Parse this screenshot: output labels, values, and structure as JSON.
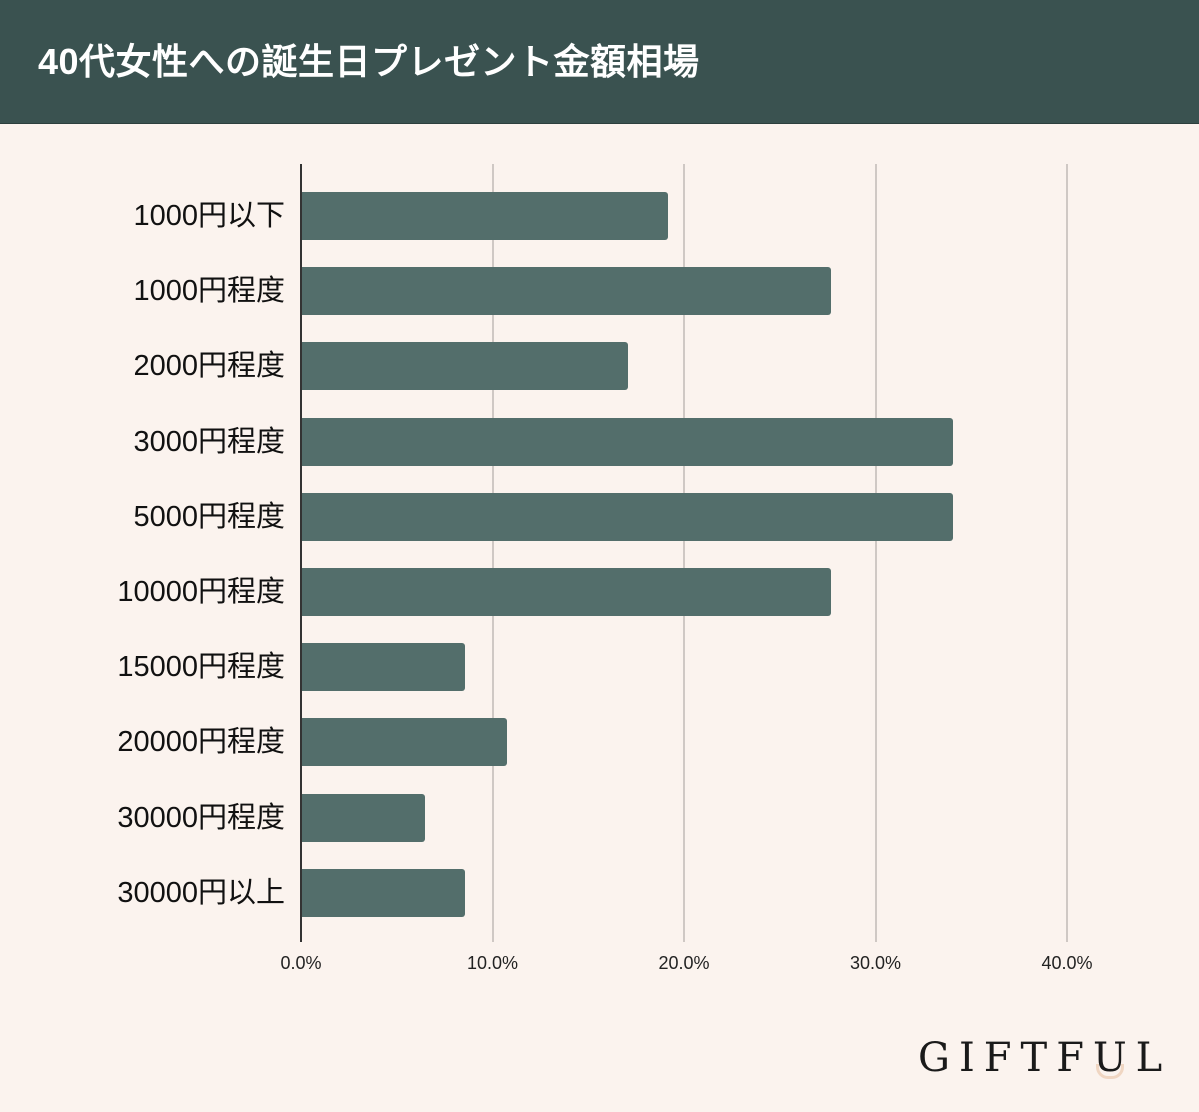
{
  "header": {
    "title": "40代女性への誕生日プレゼント金額相場"
  },
  "colors": {
    "header_bg": "#3a5250",
    "bar": "#536e6b",
    "background": "#fbf3ee",
    "logo_accent": "#f0d6c2"
  },
  "chart_data": {
    "type": "bar",
    "orientation": "horizontal",
    "title": "40代女性への誕生日プレゼント金額相場",
    "categories": [
      "1000円以下",
      "1000円程度",
      "2000円程度",
      "3000円程度",
      "5000円程度",
      "10000円程度",
      "15000円程度",
      "20000円程度",
      "30000円程度",
      "30000円以上"
    ],
    "values": [
      19.1,
      27.6,
      17.0,
      34.0,
      34.0,
      27.6,
      8.5,
      10.7,
      6.4,
      8.5
    ],
    "unit": "%",
    "xlabel": "",
    "ylabel": "",
    "xlim": [
      0,
      40
    ],
    "x_ticks": [
      "0.0%",
      "10.0%",
      "20.0%",
      "30.0%",
      "40.0%"
    ],
    "grid": true,
    "legend": null
  },
  "logo": {
    "text_pre": "GIFTF",
    "text_u": "U",
    "text_post": "L"
  }
}
